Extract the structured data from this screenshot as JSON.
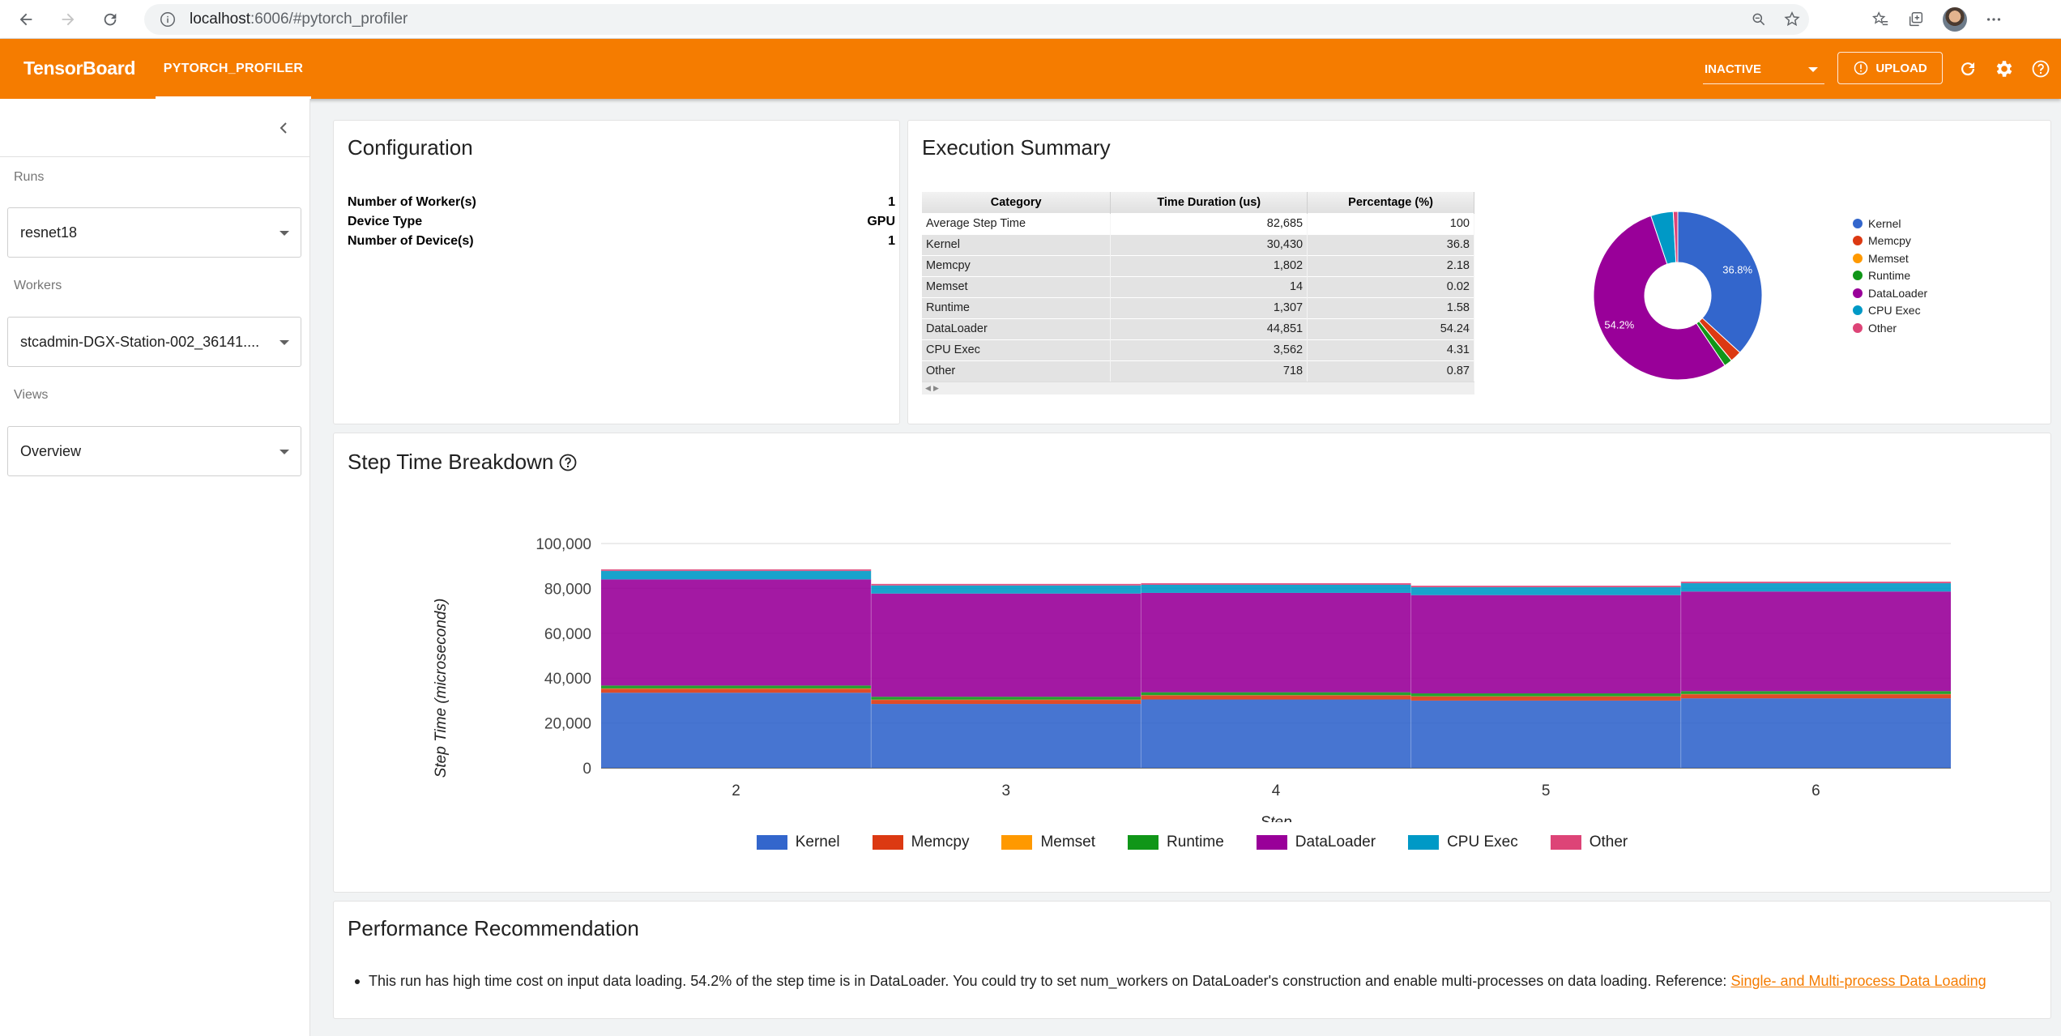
{
  "browser": {
    "url_host": "localhost",
    "url_rest": ":6006/#pytorch_profiler"
  },
  "header": {
    "logo": "TensorBoard",
    "tab": "PYTORCH_PROFILER",
    "status": "INACTIVE",
    "upload": "UPLOAD"
  },
  "sidebar": {
    "runs_label": "Runs",
    "runs_value": "resnet18",
    "workers_label": "Workers",
    "workers_value": "stcadmin-DGX-Station-002_36141....",
    "views_label": "Views",
    "views_value": "Overview"
  },
  "configuration": {
    "title": "Configuration",
    "rows": [
      {
        "label": "Number of Worker(s)",
        "value": "1"
      },
      {
        "label": "Device Type",
        "value": "GPU"
      },
      {
        "label": "Number of Device(s)",
        "value": "1"
      }
    ]
  },
  "execution": {
    "title": "Execution Summary",
    "columns": [
      "Category",
      "Time Duration (us)",
      "Percentage (%)"
    ],
    "rows": [
      [
        "Average Step Time",
        "82,685",
        "100"
      ],
      [
        "Kernel",
        "30,430",
        "36.8"
      ],
      [
        "Memcpy",
        "1,802",
        "2.18"
      ],
      [
        "Memset",
        "14",
        "0.02"
      ],
      [
        "Runtime",
        "1,307",
        "1.58"
      ],
      [
        "DataLoader",
        "44,851",
        "54.24"
      ],
      [
        "CPU Exec",
        "3,562",
        "4.31"
      ],
      [
        "Other",
        "718",
        "0.87"
      ]
    ]
  },
  "colors": {
    "Kernel": "#3366cc",
    "Memcpy": "#dc3912",
    "Memset": "#ff9900",
    "Runtime": "#109618",
    "DataLoader": "#990099",
    "CPU Exec": "#0099c6",
    "Other": "#dd4477"
  },
  "chart_data": [
    {
      "type": "pie",
      "donut": true,
      "labels": [
        "Kernel",
        "Memcpy",
        "Memset",
        "Runtime",
        "DataLoader",
        "CPU Exec",
        "Other"
      ],
      "values": [
        36.8,
        2.18,
        0.02,
        1.58,
        54.24,
        4.31,
        0.87
      ],
      "slice_labels": [
        "36.8%",
        "",
        "",
        "",
        "54.2%",
        "",
        ""
      ],
      "legend": "right"
    },
    {
      "type": "area",
      "stacked": true,
      "title": "Step Time Breakdown",
      "xlabel": "Step",
      "ylabel": "Step Time (microseconds)",
      "x": [
        2,
        3,
        4,
        5,
        6
      ],
      "ylim": [
        0,
        100000
      ],
      "yticks": [
        "0",
        "20,000",
        "40,000",
        "60,000",
        "80,000",
        "100,000"
      ],
      "legend": "bottom",
      "series": [
        {
          "name": "Kernel",
          "values": [
            33500,
            28500,
            30500,
            30000,
            31000
          ]
        },
        {
          "name": "Memcpy",
          "values": [
            1800,
            1800,
            1800,
            1800,
            1800
          ]
        },
        {
          "name": "Memset",
          "values": [
            100,
            100,
            100,
            100,
            100
          ]
        },
        {
          "name": "Runtime",
          "values": [
            1300,
            1300,
            1300,
            1300,
            1300
          ]
        },
        {
          "name": "DataLoader",
          "values": [
            47300,
            46000,
            44300,
            43800,
            44400
          ]
        },
        {
          "name": "CPU Exec",
          "values": [
            3800,
            3600,
            3600,
            3500,
            3700
          ]
        },
        {
          "name": "Other",
          "values": [
            700,
            700,
            700,
            700,
            700
          ]
        }
      ]
    }
  ],
  "recommendation": {
    "title": "Performance Recommendation",
    "text": "This run has high time cost on input data loading. 54.2% of the step time is in DataLoader. You could try to set num_workers on DataLoader's construction and enable multi-processes on data loading. Reference: ",
    "link": "Single- and Multi-process Data Loading"
  }
}
